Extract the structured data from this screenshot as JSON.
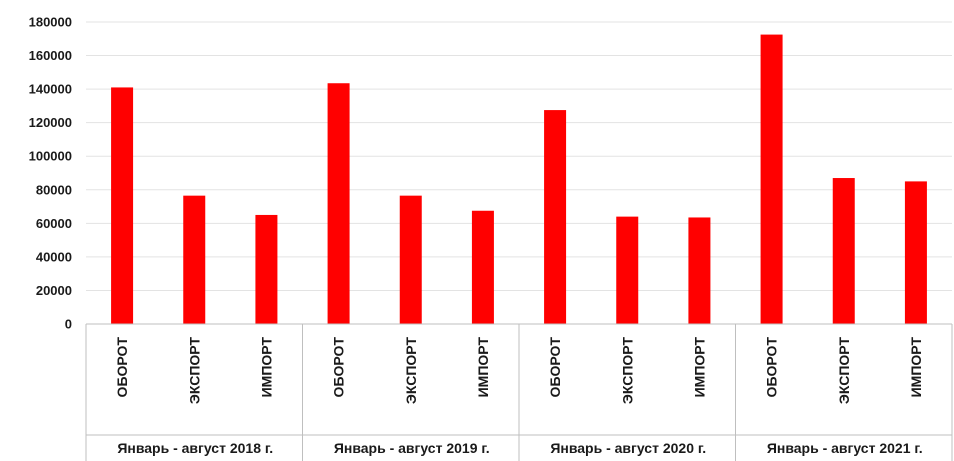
{
  "chart_data": {
    "type": "bar",
    "title": "",
    "xlabel": "",
    "ylabel": "",
    "ylim": [
      0,
      180000
    ],
    "yticks": [
      0,
      20000,
      40000,
      60000,
      80000,
      100000,
      120000,
      140000,
      160000,
      180000
    ],
    "grid": true,
    "legend": "none",
    "bar_color": "#ff0000",
    "groups": [
      {
        "label": "Январь - август 2018 г.",
        "categories": [
          "ОБОРОТ",
          "ЭКСПОРТ",
          "ИМПОРТ"
        ],
        "values": [
          141000,
          76500,
          65000
        ]
      },
      {
        "label": "Январь - август 2019 г.",
        "categories": [
          "ОБОРОТ",
          "ЭКСПОРТ",
          "ИМПОРТ"
        ],
        "values": [
          143500,
          76500,
          67500
        ]
      },
      {
        "label": "Январь - август 2020 г.",
        "categories": [
          "ОБОРОТ",
          "ЭКСПОРТ",
          "ИМПОРТ"
        ],
        "values": [
          127500,
          64000,
          63500
        ]
      },
      {
        "label": "Январь - август 2021 г.",
        "categories": [
          "ОБОРОТ",
          "ЭКСПОРТ",
          "ИМПОРТ"
        ],
        "values": [
          172500,
          87000,
          85000
        ]
      }
    ]
  }
}
